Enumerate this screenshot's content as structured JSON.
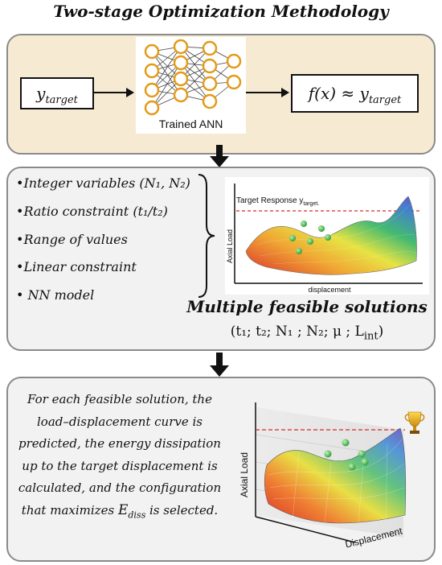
{
  "title": "Two-stage Optimization Methodology",
  "stage1": {
    "input_label": "y",
    "input_sub": "target",
    "ann_label": "Trained ANN",
    "output_label": "f(x) ≈ y",
    "output_sub": "target"
  },
  "stage2": {
    "bullets": [
      "•Integer variables (N₁, N₂)",
      "•Ratio constraint (t₁/t₂)",
      "•Range of values",
      "•Linear constraint",
      "• NN model"
    ],
    "chart_title": "Target Response y",
    "chart_title_sub": "target.",
    "chart_ylabel": "Axial Load",
    "chart_xlabel": "displacement",
    "heading": "Multiple feasible solutions",
    "tuple": "(t₁; t₂; N₁ ; N₂; μ ; L",
    "tuple_sub": "int",
    "tuple_end": ")"
  },
  "stage3": {
    "text_lines": [
      "For each feasible solution, the",
      "load–displacement curve is",
      "predicted, the energy dissipation",
      "up to the target displacement is",
      "calculated, and the configuration",
      "that maximizes"
    ],
    "ediss_label": "E",
    "ediss_sub": "diss",
    "text_end": "is selected.",
    "chart_ylabel": "Axial Load",
    "chart_xlabel": "Displacement",
    "trophy_icon": "trophy-icon"
  },
  "colors": {
    "panel1_bg": "#f6ebd2",
    "panel_bg": "#f2f2f2",
    "target_line": "#d42a2a",
    "sphere": "#35b34a"
  }
}
